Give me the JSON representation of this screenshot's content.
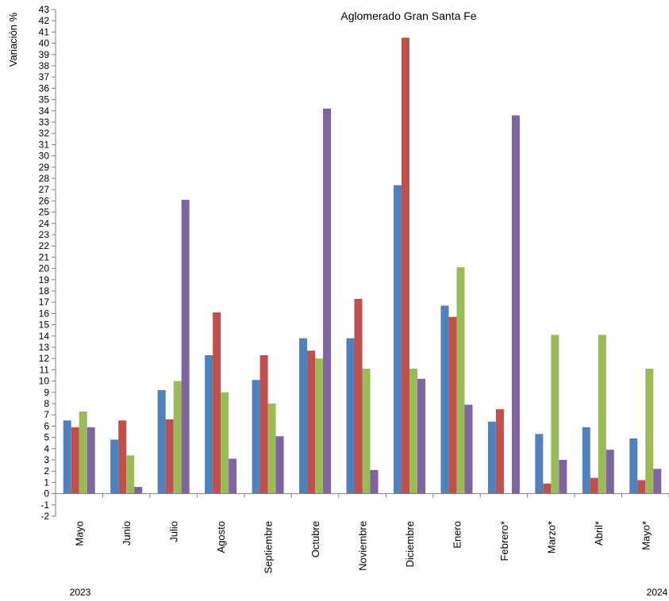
{
  "chart_data": {
    "type": "bar",
    "title": "Aglomerado Gran Santa Fe",
    "ylabel": "Variación %",
    "xlabel": "",
    "ylim": [
      -2,
      43
    ],
    "ytick_step": 1,
    "grid": false,
    "legend": "none",
    "categories": [
      "Mayo",
      "Junio",
      "Julio",
      "Agosto",
      "Septiembre",
      "Octubre",
      "Noviembre",
      "Diciembre",
      "Enero",
      "Febrero*",
      "Marzo*",
      "Abril*",
      "Mayo*"
    ],
    "year_labels": {
      "first": "2023",
      "last": "2024"
    },
    "series": [
      {
        "color": "#4f81bd",
        "values": [
          6.5,
          4.8,
          9.2,
          12.3,
          10.1,
          13.8,
          13.8,
          27.4,
          16.7,
          6.4,
          5.3,
          5.9,
          4.9
        ]
      },
      {
        "color": "#c0504d",
        "values": [
          5.9,
          6.5,
          6.6,
          16.1,
          12.3,
          12.7,
          17.3,
          40.5,
          15.7,
          7.5,
          0.9,
          1.4,
          1.2
        ]
      },
      {
        "color": "#9bbb59",
        "values": [
          7.3,
          3.4,
          10.0,
          9.0,
          8.0,
          12.0,
          11.1,
          11.1,
          20.1,
          0.0,
          14.1,
          14.1,
          11.1
        ]
      },
      {
        "color": "#8064a2",
        "values": [
          5.9,
          0.6,
          26.1,
          3.1,
          5.1,
          34.2,
          2.1,
          10.2,
          7.9,
          33.6,
          3.0,
          3.9,
          2.2
        ]
      }
    ]
  }
}
